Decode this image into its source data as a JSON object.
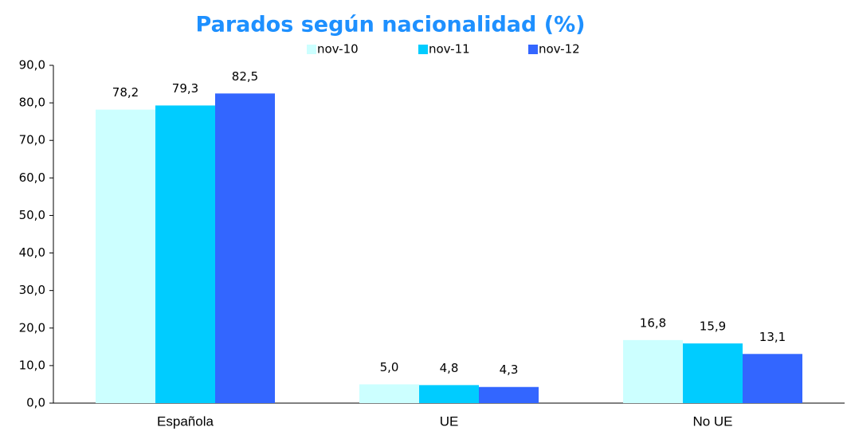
{
  "chart_data": {
    "type": "bar",
    "title": "Parados según nacionalidad (%)",
    "categories": [
      "Española",
      "UE",
      "No UE"
    ],
    "series": [
      {
        "name": "nov-10",
        "color": "#ccffff",
        "values": [
          78.2,
          5.0,
          16.8
        ],
        "value_labels": [
          "78,2",
          "5,0",
          "16,8"
        ]
      },
      {
        "name": "nov-11",
        "color": "#00ccff",
        "values": [
          79.3,
          4.8,
          15.9
        ],
        "value_labels": [
          "79,3",
          "4,8",
          "15,9"
        ]
      },
      {
        "name": "nov-12",
        "color": "#3366ff",
        "values": [
          82.5,
          4.3,
          13.1
        ],
        "value_labels": [
          "82,5",
          "4,3",
          "13,1"
        ]
      }
    ],
    "ylim": [
      0,
      90
    ],
    "yticks": [
      {
        "value": 0,
        "label": "0,0"
      },
      {
        "value": 10,
        "label": "10,0"
      },
      {
        "value": 20,
        "label": "20,0"
      },
      {
        "value": 30,
        "label": "30,0"
      },
      {
        "value": 40,
        "label": "40,0"
      },
      {
        "value": 50,
        "label": "50,0"
      },
      {
        "value": 60,
        "label": "60,0"
      },
      {
        "value": 70,
        "label": "70,0"
      },
      {
        "value": 80,
        "label": "80,0"
      },
      {
        "value": 90,
        "label": "90,0"
      }
    ],
    "legend": "top",
    "grid": false
  }
}
